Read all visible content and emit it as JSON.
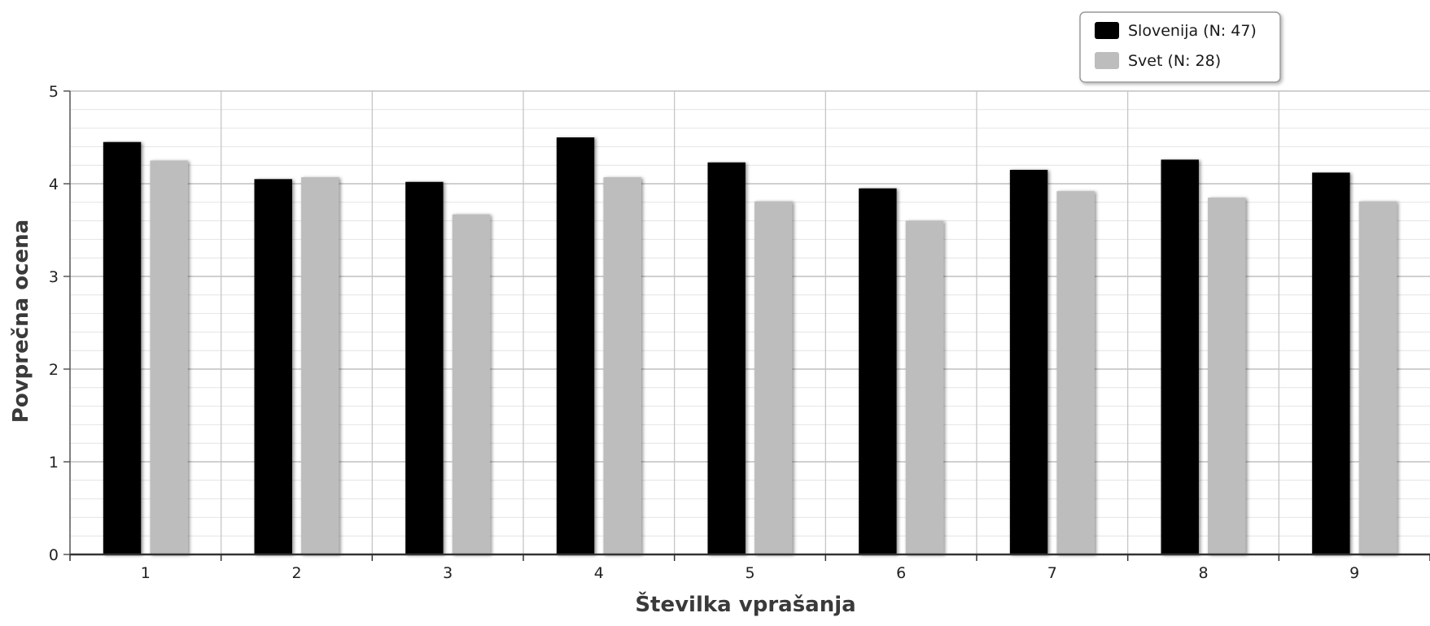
{
  "chart_data": {
    "type": "bar",
    "title": "",
    "xlabel": "Številka vprašanja",
    "ylabel": "Povprečna ocena",
    "categories": [
      "1",
      "2",
      "3",
      "4",
      "5",
      "6",
      "7",
      "8",
      "9"
    ],
    "series": [
      {
        "name": "Slovenija (N: 47)",
        "color": "#000000",
        "values": [
          4.45,
          4.05,
          4.02,
          4.5,
          4.23,
          3.95,
          4.15,
          4.26,
          4.12
        ]
      },
      {
        "name": "Svet (N: 28)",
        "color": "#bdbdbd",
        "values": [
          4.25,
          4.07,
          3.67,
          4.07,
          3.81,
          3.6,
          3.92,
          3.85,
          3.81
        ]
      }
    ],
    "ylim": [
      0,
      5
    ],
    "yticks": [
      0,
      1,
      2,
      3,
      4,
      5
    ],
    "minor_grid_step": 0.2,
    "grid": true,
    "legend_position": "top-right"
  }
}
